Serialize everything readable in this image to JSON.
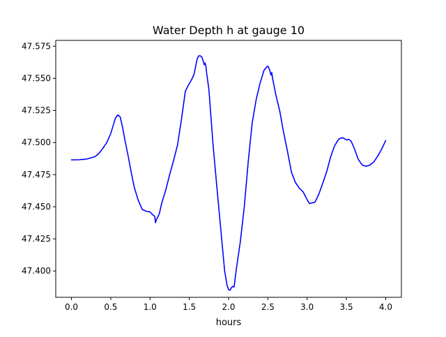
{
  "chart_data": {
    "type": "line",
    "title": "Water Depth h at gauge 10",
    "xlabel": "hours",
    "ylabel": "",
    "xlim": [
      -0.2,
      4.2
    ],
    "ylim": [
      47.3795,
      47.5795
    ],
    "xticks": [
      {
        "value": 0.0,
        "label": "0.0"
      },
      {
        "value": 0.5,
        "label": "0.5"
      },
      {
        "value": 1.0,
        "label": "1.0"
      },
      {
        "value": 1.5,
        "label": "1.5"
      },
      {
        "value": 2.0,
        "label": "2.0"
      },
      {
        "value": 2.5,
        "label": "2.5"
      },
      {
        "value": 3.0,
        "label": "3.0"
      },
      {
        "value": 3.5,
        "label": "3.5"
      },
      {
        "value": 4.0,
        "label": "4.0"
      }
    ],
    "yticks": [
      {
        "value": 47.4,
        "label": "47.400"
      },
      {
        "value": 47.425,
        "label": "47.425"
      },
      {
        "value": 47.45,
        "label": "47.450"
      },
      {
        "value": 47.475,
        "label": "47.475"
      },
      {
        "value": 47.5,
        "label": "47.500"
      },
      {
        "value": 47.525,
        "label": "47.525"
      },
      {
        "value": 47.55,
        "label": "47.550"
      },
      {
        "value": 47.575,
        "label": "47.575"
      }
    ],
    "grid": false,
    "legend": "none",
    "line_color": "#0000ff",
    "series": [
      {
        "x": [
          0.0,
          0.1,
          0.2,
          0.3,
          0.35,
          0.4,
          0.45,
          0.5,
          0.53,
          0.56,
          0.59,
          0.62,
          0.65,
          0.68,
          0.72,
          0.76,
          0.8,
          0.85,
          0.9,
          0.95,
          1.0,
          1.03,
          1.06,
          1.07,
          1.08,
          1.1,
          1.12,
          1.15,
          1.2,
          1.25,
          1.3,
          1.35,
          1.4,
          1.45,
          1.5,
          1.53,
          1.56,
          1.6,
          1.62,
          1.64,
          1.66,
          1.68,
          1.69,
          1.7,
          1.71,
          1.72,
          1.75,
          1.8,
          1.85,
          1.9,
          1.95,
          1.98,
          2.0,
          2.02,
          2.03,
          2.05,
          2.07,
          2.1,
          2.15,
          2.2,
          2.25,
          2.3,
          2.35,
          2.4,
          2.45,
          2.48,
          2.5,
          2.52,
          2.54,
          2.55,
          2.56,
          2.6,
          2.65,
          2.7,
          2.75,
          2.8,
          2.85,
          2.9,
          2.95,
          3.0,
          3.03,
          3.06,
          3.1,
          3.15,
          3.2,
          3.25,
          3.3,
          3.35,
          3.4,
          3.43,
          3.46,
          3.5,
          3.53,
          3.56,
          3.6,
          3.65,
          3.7,
          3.75,
          3.8,
          3.85,
          3.9,
          3.95,
          4.0
        ],
        "y": [
          47.4865,
          47.4866,
          47.4872,
          47.489,
          47.4915,
          47.4955,
          47.5,
          47.507,
          47.513,
          47.519,
          47.5215,
          47.52,
          47.512,
          47.502,
          47.49,
          47.477,
          47.465,
          47.455,
          47.448,
          47.4465,
          47.446,
          47.444,
          47.4425,
          47.4375,
          47.44,
          47.442,
          47.445,
          47.453,
          47.463,
          47.475,
          47.486,
          47.498,
          47.518,
          47.54,
          47.546,
          47.549,
          47.553,
          47.565,
          47.5675,
          47.5675,
          47.5665,
          47.563,
          47.5605,
          47.562,
          47.56,
          47.5545,
          47.541,
          47.5,
          47.466,
          47.433,
          47.4,
          47.389,
          47.3855,
          47.385,
          47.3865,
          47.388,
          47.3875,
          47.402,
          47.423,
          47.45,
          47.485,
          47.515,
          47.533,
          47.546,
          47.556,
          47.5585,
          47.5595,
          47.557,
          47.5525,
          47.5545,
          47.55,
          47.5375,
          47.525,
          47.508,
          47.493,
          47.477,
          47.469,
          47.4645,
          47.4615,
          47.4555,
          47.4525,
          47.453,
          47.4535,
          47.46,
          47.4685,
          47.4775,
          47.489,
          47.4975,
          47.5025,
          47.5035,
          47.5035,
          47.502,
          47.5025,
          47.501,
          47.4955,
          47.487,
          47.4825,
          47.4815,
          47.4825,
          47.485,
          47.4895,
          47.495,
          47.5015
        ]
      }
    ]
  }
}
